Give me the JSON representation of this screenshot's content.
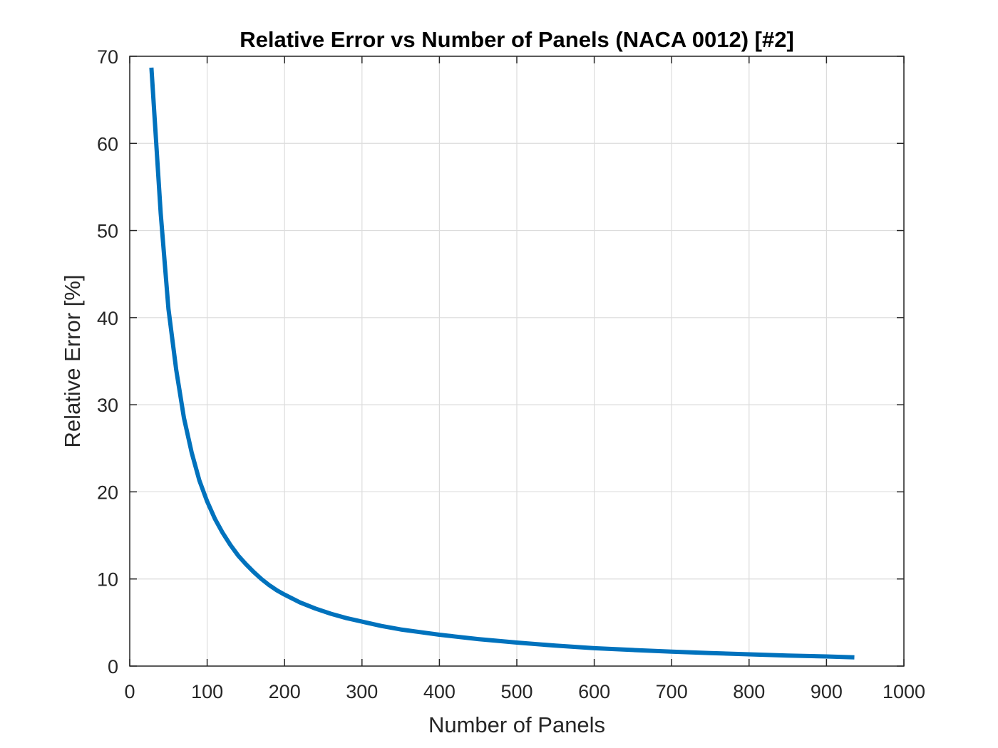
{
  "chart_data": {
    "type": "line",
    "title": "Relative Error vs Number of Panels (NACA 0012) [#2]",
    "xlabel": "Number of Panels",
    "ylabel": "Relative Error [%]",
    "xlim": [
      0,
      1000
    ],
    "ylim": [
      0,
      70
    ],
    "xticks": [
      0,
      100,
      200,
      300,
      400,
      500,
      600,
      700,
      800,
      900,
      1000
    ],
    "yticks": [
      0,
      10,
      20,
      30,
      40,
      50,
      60,
      70
    ],
    "grid": true,
    "series": [
      {
        "color": "#0072BD",
        "x": [
          28,
          40,
          50,
          60,
          70,
          80,
          90,
          100,
          110,
          120,
          130,
          140,
          150,
          160,
          170,
          180,
          190,
          200,
          220,
          240,
          260,
          280,
          300,
          325,
          350,
          375,
          400,
          450,
          500,
          550,
          600,
          650,
          700,
          750,
          800,
          850,
          900,
          936
        ],
        "y": [
          68.7,
          52.0,
          41.0,
          34.0,
          28.5,
          24.5,
          21.3,
          18.9,
          16.9,
          15.3,
          13.9,
          12.7,
          11.7,
          10.8,
          10.0,
          9.3,
          8.7,
          8.2,
          7.3,
          6.6,
          6.0,
          5.5,
          5.1,
          4.6,
          4.2,
          3.9,
          3.6,
          3.1,
          2.7,
          2.35,
          2.05,
          1.85,
          1.65,
          1.5,
          1.35,
          1.2,
          1.1,
          1.0
        ]
      }
    ]
  }
}
